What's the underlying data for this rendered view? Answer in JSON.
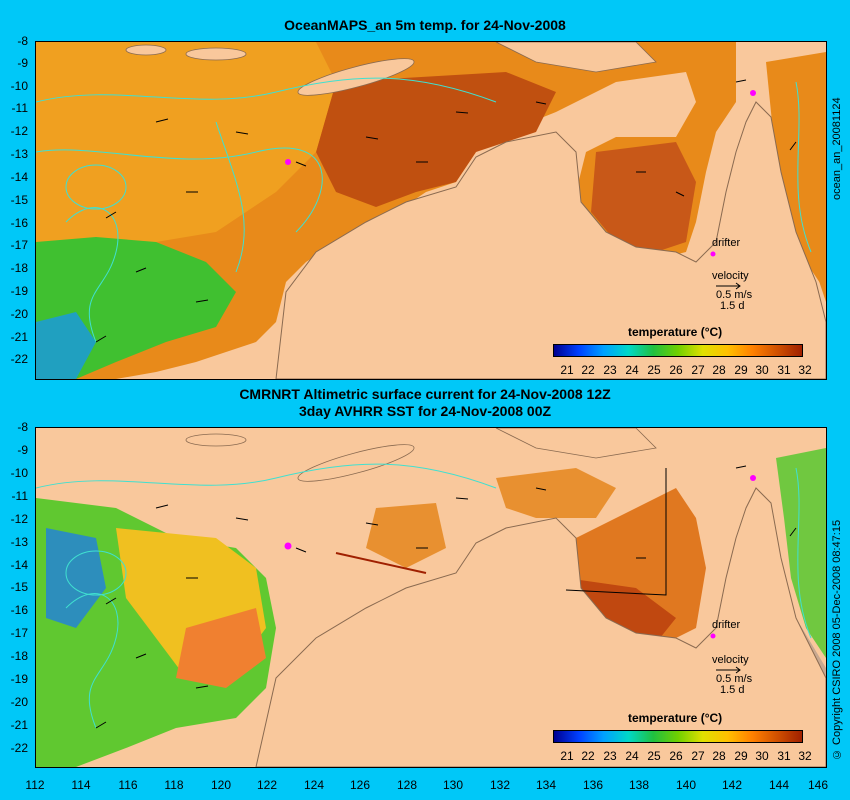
{
  "top_panel": {
    "title": "OceanMAPS_an 5m temp. for 24-Nov-2008",
    "side_label": "ocean_an_20081124"
  },
  "bottom_panel": {
    "title_line1": "CMRNRT Altimetric surface current for 24-Nov-2008 12Z",
    "title_line2": "3day AVHRR SST for 24-Nov-2008 00Z",
    "side_label": "© Copyright CSIRO 2008   05-Dec-2008 08:47:15"
  },
  "y_axis_labels": [
    "-8",
    "-9",
    "-10",
    "-11",
    "-12",
    "-13",
    "-14",
    "-15",
    "-16",
    "-17",
    "-18",
    "-19",
    "-20",
    "-21",
    "-22"
  ],
  "x_axis_labels": [
    "112",
    "114",
    "116",
    "118",
    "120",
    "122",
    "124",
    "126",
    "128",
    "130",
    "132",
    "134",
    "136",
    "138",
    "140",
    "142",
    "144",
    "146"
  ],
  "legend": {
    "title": "temperature (°C)",
    "ticks": [
      "21",
      "22",
      "23",
      "24",
      "25",
      "26",
      "27",
      "28",
      "29",
      "30",
      "31",
      "32"
    ],
    "colors": [
      "#000090",
      "#0040ff",
      "#00a0ff",
      "#00d8c8",
      "#20c040",
      "#70d000",
      "#e0e000",
      "#ffc000",
      "#ff8000",
      "#d05000",
      "#a02000"
    ]
  },
  "annotations": {
    "drifter": "drifter",
    "velocity": "velocity",
    "scale_speed": "0.5 m/s",
    "scale_time": "1.5 d"
  },
  "colors": {
    "background": "#00c8f8",
    "land": "#f9c89c",
    "contour": "#40e0d0",
    "drifter": "#ff00ff",
    "no_data": "#c8a890"
  }
}
